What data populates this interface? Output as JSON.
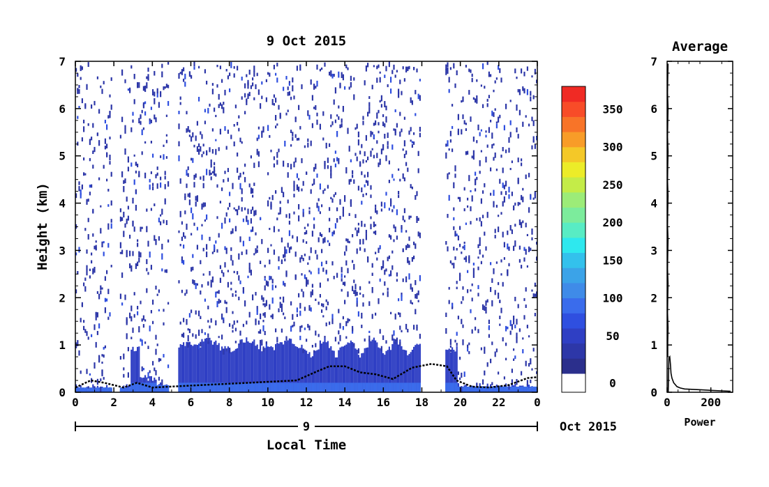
{
  "chart_data": [
    {
      "type": "heatmap",
      "title": "9 Oct 2015",
      "xlabel": "Local Time",
      "ylabel": "Height (km)",
      "xlim": [
        0,
        24
      ],
      "ylim": [
        0,
        7
      ],
      "x_ticks": [
        "0",
        "2",
        "4",
        "6",
        "8",
        "10",
        "12",
        "14",
        "16",
        "18",
        "20",
        "22",
        "0"
      ],
      "y_ticks": [
        "0",
        "1",
        "2",
        "3",
        "4",
        "5",
        "6",
        "7"
      ],
      "date_day": "9",
      "date_month_year": "Oct 2015",
      "colorbar": {
        "range": [
          0,
          380
        ],
        "ticks": [
          "0",
          "50",
          "100",
          "150",
          "200",
          "250",
          "300",
          "350"
        ],
        "colors": [
          "#2b2f8c",
          "#2d37a8",
          "#2f3fc4",
          "#2f4fe0",
          "#3a6cec",
          "#3f8be8",
          "#3ba3e8",
          "#33c1ec",
          "#2ee8ee",
          "#58ecc4",
          "#7cec9c",
          "#9cec78",
          "#c4ec48",
          "#ecec28",
          "#f4c828",
          "#f89c28",
          "#f87428",
          "#f84c28",
          "#f02a24"
        ]
      },
      "data_gaps_hours": [
        [
          1.9,
          2.3
        ],
        [
          4.8,
          5.3
        ],
        [
          17.9,
          19.2
        ]
      ],
      "boundary_layer_top_km": [
        {
          "x": 0,
          "y": 0.1
        },
        {
          "x": 0.8,
          "y": 0.25
        },
        {
          "x": 1.5,
          "y": 0.2
        },
        {
          "x": 2.5,
          "y": 0.1
        },
        {
          "x": 3.2,
          "y": 0.2
        },
        {
          "x": 4.0,
          "y": 0.1
        },
        {
          "x": 6.5,
          "y": 0.15
        },
        {
          "x": 9.0,
          "y": 0.2
        },
        {
          "x": 11.5,
          "y": 0.25
        },
        {
          "x": 12.6,
          "y": 0.45
        },
        {
          "x": 13.2,
          "y": 0.55
        },
        {
          "x": 14.0,
          "y": 0.55
        },
        {
          "x": 14.8,
          "y": 0.42
        },
        {
          "x": 15.6,
          "y": 0.38
        },
        {
          "x": 16.5,
          "y": 0.28
        },
        {
          "x": 17.5,
          "y": 0.52
        },
        {
          "x": 18.5,
          "y": 0.6
        },
        {
          "x": 19.3,
          "y": 0.55
        },
        {
          "x": 19.8,
          "y": 0.25
        },
        {
          "x": 20.6,
          "y": 0.12
        },
        {
          "x": 21.5,
          "y": 0.1
        },
        {
          "x": 22.5,
          "y": 0.15
        },
        {
          "x": 23.5,
          "y": 0.3
        },
        {
          "x": 24,
          "y": 0.32
        }
      ]
    },
    {
      "type": "line",
      "title": "Average",
      "xlabel": "Power",
      "ylabel": "",
      "xlim": [
        0,
        300
      ],
      "ylim": [
        0,
        7
      ],
      "x_ticks": [
        "0",
        "200"
      ],
      "y_ticks": [
        "0",
        "1",
        "2",
        "3",
        "4",
        "5",
        "6",
        "7"
      ],
      "x": [
        5,
        8,
        12,
        15,
        18,
        22,
        30,
        45,
        60,
        80,
        120,
        160,
        200,
        250,
        290
      ],
      "y": [
        0.0,
        0.72,
        0.75,
        0.6,
        0.4,
        0.3,
        0.2,
        0.12,
        0.09,
        0.07,
        0.06,
        0.05,
        0.04,
        0.03,
        0.02
      ]
    }
  ]
}
